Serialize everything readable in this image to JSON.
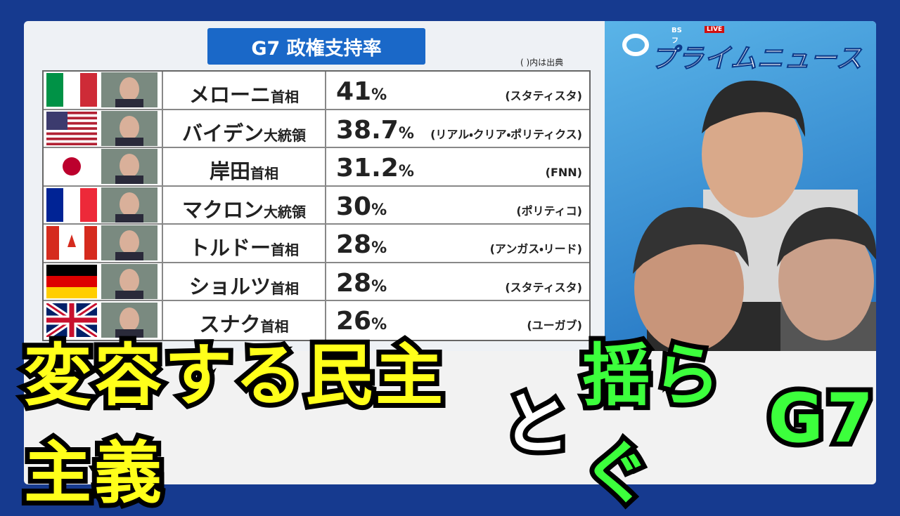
{
  "logo": {
    "channel": "BSフジ",
    "live": "LIVE",
    "program": "プライムニュース"
  },
  "table": {
    "title": "G7 政権支持率",
    "note": "( )内は出典",
    "rows": [
      {
        "name": "メローニ",
        "role": "首相",
        "value": "41",
        "unit": "%",
        "source": "(スタティスタ)"
      },
      {
        "name": "バイデン",
        "role": "大統領",
        "value": "38.7",
        "unit": "%",
        "source": "(リアル・クリア・ポリティクス)"
      },
      {
        "name": "岸田",
        "role": "首相",
        "value": "31.2",
        "unit": "%",
        "source": "(FNN)"
      },
      {
        "name": "マクロン",
        "role": "大統領",
        "value": "30",
        "unit": "%",
        "source": "(ポリティコ)"
      },
      {
        "name": "トルドー",
        "role": "首相",
        "value": "28",
        "unit": "%",
        "source": "(アンガス・リード)"
      },
      {
        "name": "ショルツ",
        "role": "首相",
        "value": "28",
        "unit": "%",
        "source": "(スタティスタ)"
      },
      {
        "name": "スナク",
        "role": "首相",
        "value": "26",
        "unit": "%",
        "source": "(ユーガブ)"
      }
    ]
  },
  "headline": {
    "segments": [
      {
        "text": "変容する民主主義",
        "color": "#ffff1a"
      },
      {
        "text": "と",
        "color": "#ffffff"
      },
      {
        "text": "揺らぐ",
        "color": "#3cff3c"
      },
      {
        "text": "G7",
        "color": "#3cff3c"
      }
    ]
  }
}
